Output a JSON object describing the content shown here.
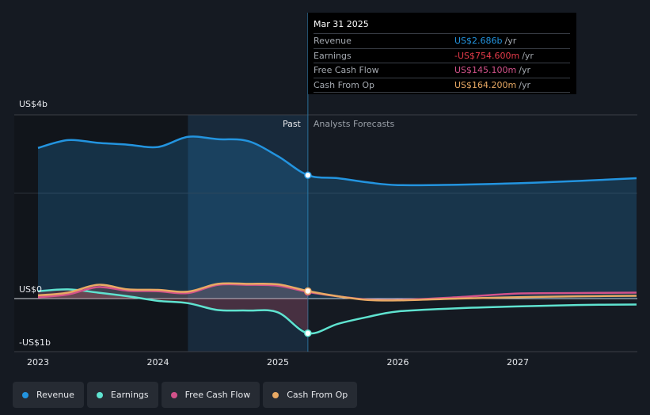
{
  "chart_data": {
    "type": "line",
    "title": "",
    "y_axis_labels": [
      "US$4b",
      "US$0",
      "-US$1b"
    ],
    "ylim": [
      -1,
      4
    ],
    "x_ticks": [
      {
        "label": "2023",
        "x": 2023.0
      },
      {
        "label": "2024",
        "x": 2024.0
      },
      {
        "label": "2025",
        "x": 2025.0
      },
      {
        "label": "2026",
        "x": 2026.0
      },
      {
        "label": "2027",
        "x": 2027.0
      }
    ],
    "xlim": [
      2022.8,
      2027.99
    ],
    "past_label": "Past",
    "forecast_label": "Analysts Forecasts",
    "highlight_range": [
      2024.25,
      2025.25
    ],
    "divider_x": 2025.25,
    "series": [
      {
        "name": "Revenue",
        "color": "#2394df",
        "fill": true,
        "points": [
          [
            2023.0,
            3.28
          ],
          [
            2023.25,
            3.45
          ],
          [
            2023.5,
            3.39
          ],
          [
            2023.75,
            3.35
          ],
          [
            2024.0,
            3.3
          ],
          [
            2024.25,
            3.52
          ],
          [
            2024.5,
            3.47
          ],
          [
            2024.75,
            3.43
          ],
          [
            2025.0,
            3.1
          ],
          [
            2025.25,
            2.686
          ],
          [
            2025.5,
            2.62
          ],
          [
            2025.75,
            2.53
          ],
          [
            2026.0,
            2.47
          ],
          [
            2026.5,
            2.48
          ],
          [
            2027.0,
            2.51
          ],
          [
            2027.5,
            2.56
          ],
          [
            2027.99,
            2.62
          ]
        ]
      },
      {
        "name": "Earnings",
        "color": "#5fe3d0",
        "fill": false,
        "points": [
          [
            2023.0,
            0.16
          ],
          [
            2023.25,
            0.2
          ],
          [
            2023.5,
            0.13
          ],
          [
            2023.75,
            0.05
          ],
          [
            2024.0,
            -0.05
          ],
          [
            2024.25,
            -0.1
          ],
          [
            2024.5,
            -0.25
          ],
          [
            2024.75,
            -0.26
          ],
          [
            2025.0,
            -0.3
          ],
          [
            2025.25,
            -0.7546
          ],
          [
            2025.5,
            -0.55
          ],
          [
            2025.75,
            -0.4
          ],
          [
            2026.0,
            -0.28
          ],
          [
            2026.5,
            -0.21
          ],
          [
            2027.0,
            -0.17
          ],
          [
            2027.5,
            -0.14
          ],
          [
            2027.99,
            -0.13
          ]
        ]
      },
      {
        "name": "Free Cash Flow",
        "color": "#d2528a",
        "fill": false,
        "points": [
          [
            2023.0,
            0.03
          ],
          [
            2023.25,
            0.09
          ],
          [
            2023.5,
            0.25
          ],
          [
            2023.75,
            0.17
          ],
          [
            2024.0,
            0.16
          ],
          [
            2024.25,
            0.12
          ],
          [
            2024.5,
            0.3
          ],
          [
            2024.75,
            0.3
          ],
          [
            2025.0,
            0.28
          ],
          [
            2025.25,
            0.1451
          ],
          [
            2025.5,
            0.05
          ],
          [
            2025.75,
            -0.02
          ],
          [
            2026.0,
            -0.03
          ],
          [
            2026.5,
            0.03
          ],
          [
            2027.0,
            0.11
          ],
          [
            2027.5,
            0.12
          ],
          [
            2027.99,
            0.13
          ]
        ]
      },
      {
        "name": "Cash From Op",
        "color": "#e8a964",
        "fill": false,
        "points": [
          [
            2023.0,
            0.07
          ],
          [
            2023.25,
            0.13
          ],
          [
            2023.5,
            0.3
          ],
          [
            2023.75,
            0.2
          ],
          [
            2024.0,
            0.19
          ],
          [
            2024.25,
            0.15
          ],
          [
            2024.5,
            0.32
          ],
          [
            2024.75,
            0.32
          ],
          [
            2025.0,
            0.31
          ],
          [
            2025.25,
            0.1642
          ],
          [
            2025.5,
            0.05
          ],
          [
            2025.75,
            -0.03
          ],
          [
            2026.0,
            -0.04
          ],
          [
            2026.5,
            0.0
          ],
          [
            2027.0,
            0.03
          ],
          [
            2027.5,
            0.05
          ],
          [
            2027.99,
            0.06
          ]
        ]
      }
    ],
    "markers_at": 2025.25
  },
  "tooltip": {
    "date": "Mar 31 2025",
    "rows": [
      {
        "label": "Revenue",
        "value": "US$2.686b",
        "unit": "/yr",
        "color": "#2394df"
      },
      {
        "label": "Earnings",
        "value": "-US$754.600m",
        "unit": "/yr",
        "color": "#e53b4a"
      },
      {
        "label": "Free Cash Flow",
        "value": "US$145.100m",
        "unit": "/yr",
        "color": "#d2528a"
      },
      {
        "label": "Cash From Op",
        "value": "US$164.200m",
        "unit": "/yr",
        "color": "#e8a964"
      }
    ]
  },
  "legend": [
    {
      "label": "Revenue",
      "color": "#2394df"
    },
    {
      "label": "Earnings",
      "color": "#5fe3d0"
    },
    {
      "label": "Free Cash Flow",
      "color": "#d2528a"
    },
    {
      "label": "Cash From Op",
      "color": "#e8a964"
    }
  ]
}
